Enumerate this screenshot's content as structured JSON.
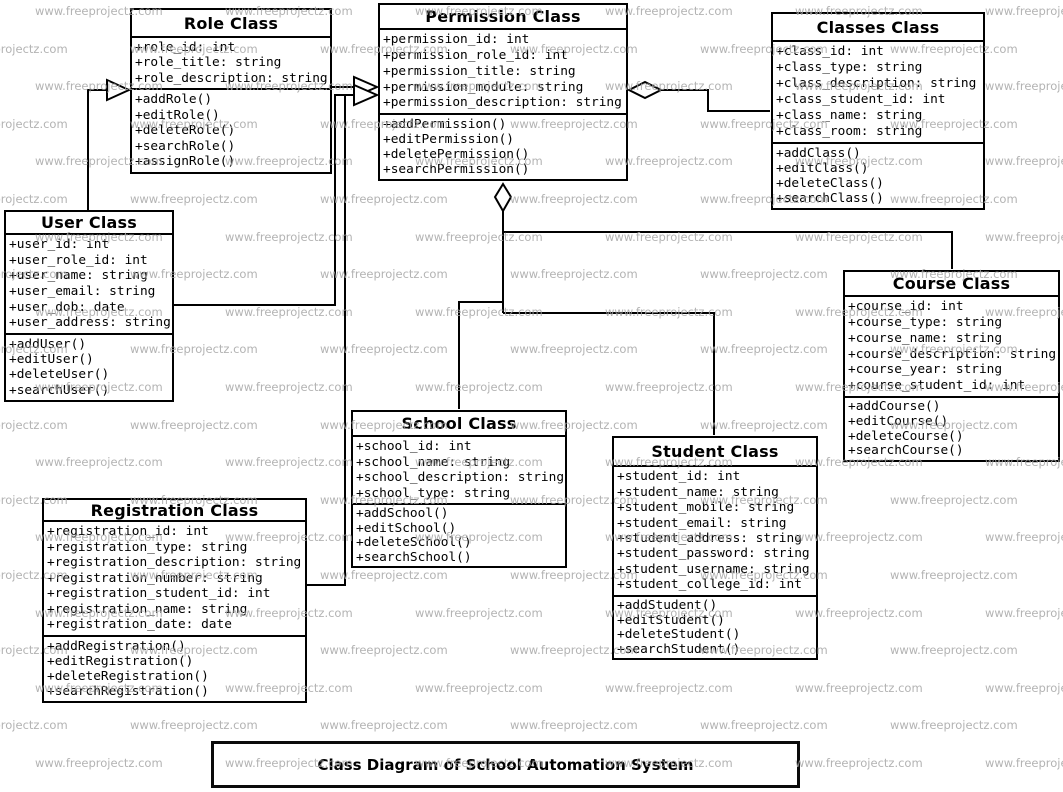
{
  "diagram_title": "Class Diagram of School Automation System",
  "watermark": {
    "text": "www.freeprojectz.com",
    "color": "#a6a6a6"
  },
  "colors": {
    "line": "#000000",
    "box_background": "#ffffff",
    "text": "#000000",
    "background": "#ffffff"
  },
  "classes": [
    {
      "id": "role",
      "title": "Role Class",
      "attributes": [
        "+role_id: int",
        "+role_title: string",
        "+role_description: string"
      ],
      "methods": [
        "+addRole()",
        "+editRole()",
        "+deleteRole()",
        "+searchRole()",
        "+assignRole()"
      ]
    },
    {
      "id": "permission",
      "title": "Permission Class",
      "attributes": [
        "+permission_id: int",
        "+permission_role_id: int",
        "+permission_title: string",
        "+permission_module: string",
        "+permission_description: string"
      ],
      "methods": [
        "+addPermission()",
        "+editPermission()",
        "+deletePermission()",
        "+searchPermission()"
      ]
    },
    {
      "id": "classes",
      "title": "Classes Class",
      "attributes": [
        "+class_id: int",
        "+class_type: string",
        "+class_description: string",
        "+class_student_id: int",
        "+class_name: string",
        "+class_room: string"
      ],
      "methods": [
        "+addClass()",
        "+editClass()",
        "+deleteClass()",
        "+searchClass()"
      ]
    },
    {
      "id": "user",
      "title": "User Class",
      "attributes": [
        "+user_id: int",
        "+user_role_id: int",
        "+user_name: string",
        "+user_email: string",
        "+user_dob: date",
        "+user_address: string"
      ],
      "methods": [
        "+addUser()",
        "+editUser()",
        "+deleteUser()",
        "+searchUser()"
      ]
    },
    {
      "id": "course",
      "title": "Course Class",
      "attributes": [
        "+course_id: int",
        "+course_type: string",
        "+course_name: string",
        "+course_description: string",
        "+course_year: string",
        "+course_student_id: int"
      ],
      "methods": [
        "+addCourse()",
        "+editCourse()",
        "+deleteCourse()",
        "+searchCourse()"
      ]
    },
    {
      "id": "school",
      "title": "School Class",
      "attributes": [
        "+school_id: int",
        "+school_name: string",
        "+school_description: string",
        "+school_type: string"
      ],
      "methods": [
        "+addSchool()",
        "+editSchool()",
        "+deleteSchool()",
        "+searchSchool()"
      ]
    },
    {
      "id": "student",
      "title": "Student Class",
      "attributes": [
        "+student_id: int",
        "+student_name: string",
        "+student_mobile: string",
        "+student_email: string",
        "+student_address: string",
        "+student_password: string",
        "+student_username: string",
        "+student_college_id: int"
      ],
      "methods": [
        "+addStudent()",
        "+editStudent()",
        "+deleteStudent()",
        "+searchStudent()"
      ]
    },
    {
      "id": "registration",
      "title": "Registration Class",
      "attributes": [
        "+registration_id: int",
        "+registration_type: string",
        "+registration_description: string",
        "+registration_number: string",
        "+registration_student_id: int",
        "+registration_name: string",
        "+registration_date: date"
      ],
      "methods": [
        "+addRegistration()",
        "+editRegistration()",
        "+deleteRegistration()",
        "+searchRegistration()"
      ]
    }
  ],
  "relationships": [
    {
      "from": "User Class",
      "to": "Role Class",
      "type": "generalization-arrow"
    },
    {
      "from": "Role Class",
      "to": "Permission Class",
      "type": "generalization-arrow"
    },
    {
      "from": "User Class",
      "to": "Permission Class",
      "type": "generalization-arrow"
    },
    {
      "from": "Registration Class",
      "to": "Permission Class",
      "type": "generalization-arrow"
    },
    {
      "from": "Classes Class",
      "to": "Permission Class",
      "type": "aggregation-diamond"
    },
    {
      "from": "Course Class",
      "to": "Permission Class",
      "type": "aggregation-diamond"
    },
    {
      "from": "School Class",
      "to": "Permission Class",
      "type": "aggregation-diamond"
    },
    {
      "from": "Student Class",
      "to": "Permission Class",
      "type": "aggregation-diamond"
    }
  ]
}
